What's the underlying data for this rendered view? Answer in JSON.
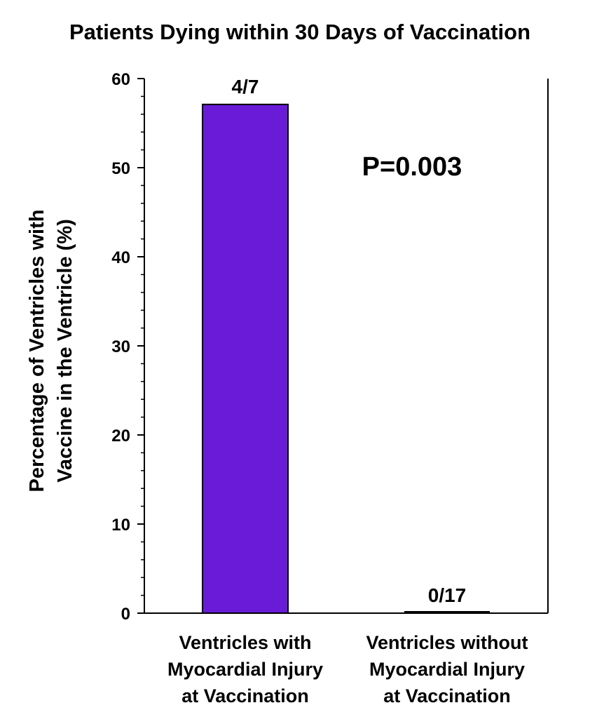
{
  "chart_data": {
    "type": "bar",
    "title": "Patients Dying within 30 Days of Vaccination",
    "ylabel_lines": [
      "Percentage of Ventricles with",
      "Vaccine in the Ventricle (%)"
    ],
    "categories": [
      [
        "Ventricles with",
        "Myocardial Injury",
        "at Vaccination"
      ],
      [
        "Ventricles without",
        "Myocardial Injury",
        "at Vaccination"
      ]
    ],
    "values": [
      57.1,
      0
    ],
    "data_labels": [
      "4/7",
      "0/17"
    ],
    "ylim": [
      0,
      60
    ],
    "yticks": [
      0,
      10,
      20,
      30,
      40,
      50,
      60
    ],
    "minor_tick_step": 2,
    "annotation": "P=0.003",
    "bar_color": "#6a1bd8",
    "grid": false
  }
}
